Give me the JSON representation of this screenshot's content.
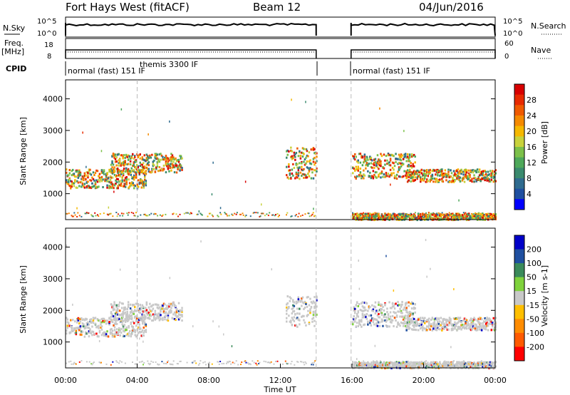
{
  "header": {
    "radar": "Fort Hays West (fitACF)",
    "beam": "Beam 12",
    "date": "04/Jun/2016"
  },
  "top_panels": {
    "nsky_label": "N.Sky",
    "nsky_ticks": [
      "10^5",
      "10^0"
    ],
    "nsearch_label": "N.Search",
    "freq_label_1": "Freq.",
    "freq_label_2": "[MHz]",
    "freq_ticks": [
      "18",
      "8"
    ],
    "nave_label": "Nave",
    "nave_ticks": [
      "60",
      "0"
    ],
    "cpid_label": "CPID",
    "cpid_segments": [
      "normal (fast) 151 IF",
      "themis 3300 IF",
      "normal (fast) 151 IF"
    ]
  },
  "colors": {
    "power": [
      "#0000ff",
      "#1f4fa0",
      "#2f6b8f",
      "#3a8a6e",
      "#4ea85a",
      "#7cc04a",
      "#c8d23c",
      "#f5b800",
      "#f58a00",
      "#f05a00",
      "#e82a00",
      "#d80000"
    ],
    "velocity": [
      "#ff0000",
      "#ff5a00",
      "#ff8c00",
      "#ffbf00",
      "#c8c8c8",
      "#7fd23c",
      "#3a8a5a",
      "#1f4fa0",
      "#0000c8"
    ]
  },
  "chart_data": [
    {
      "type": "heatmap",
      "panel": "power",
      "ylabel": "Slant Range [km]",
      "xlabel": "",
      "ylim": [
        180,
        4600
      ],
      "yticks": [
        "1000",
        "2000",
        "3000",
        "4000"
      ],
      "xlim": [
        "00:00",
        "24:00"
      ],
      "colorbar_label": "Power [dB]",
      "colorbar_ticks": [
        "4",
        "8",
        "12",
        "16",
        "20",
        "24",
        "28"
      ],
      "data_gap_hours": [
        14.0,
        15.95
      ],
      "echo_bands": [
        {
          "t": [
            0.0,
            4.5
          ],
          "range": [
            1200,
            1800
          ]
        },
        {
          "t": [
            2.5,
            6.5
          ],
          "range": [
            1700,
            2300
          ]
        },
        {
          "t": [
            12.3,
            14.0
          ],
          "range": [
            1500,
            2500
          ]
        },
        {
          "t": [
            16.0,
            19.5
          ],
          "range": [
            1500,
            2300
          ]
        },
        {
          "t": [
            19.0,
            24.0
          ],
          "range": [
            1400,
            1800
          ]
        },
        {
          "t": [
            16.0,
            24.0
          ],
          "range": [
            200,
            400
          ]
        }
      ]
    },
    {
      "type": "heatmap",
      "panel": "velocity",
      "ylabel": "Slant Range [km]",
      "xlabel": "Time UT",
      "ylim": [
        180,
        4600
      ],
      "yticks": [
        "1000",
        "2000",
        "3000",
        "4000"
      ],
      "xlim": [
        "00:00",
        "24:00"
      ],
      "xticks": [
        "00:00",
        "04:00",
        "08:00",
        "12:00",
        "16:00",
        "20:00",
        "00:00"
      ],
      "colorbar_label": "Velocity [m s-1]",
      "colorbar_ticks": [
        "200",
        "100",
        "50",
        "15",
        "-15",
        "-50",
        "-100",
        "-200"
      ]
    }
  ]
}
